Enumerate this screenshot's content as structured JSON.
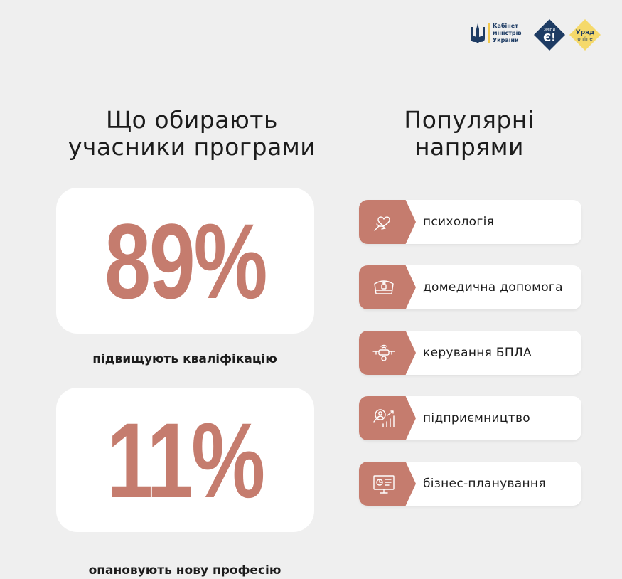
{
  "header": {
    "cabinet_logo_text": "Кабінет\nміністрів\nУкраїни",
    "e_badge_top": "ЗМІНИ",
    "e_badge_letter": "Є!",
    "uryad_title": "Уряд",
    "uryad_sub": "online"
  },
  "left": {
    "title": "Що обирають\nучасники програми",
    "stats": [
      {
        "value": "89%",
        "caption": "підвищують кваліфікацію"
      },
      {
        "value": "11%",
        "caption": "опановують нову професію"
      }
    ]
  },
  "right": {
    "title": "Популярні\nнапрями",
    "items": [
      {
        "icon": "heart-hand-icon",
        "label": "психологія"
      },
      {
        "icon": "nurse-cap-icon",
        "label": "домедична допомога"
      },
      {
        "icon": "drone-icon",
        "label": "керування БПЛА"
      },
      {
        "icon": "business-growth-icon",
        "label": "підприємництво"
      },
      {
        "icon": "presentation-board-icon",
        "label": "бізнес-планування"
      }
    ]
  },
  "colors": {
    "accent": "#c57c6e",
    "background": "#efefef",
    "card": "#ffffff",
    "navy": "#1d3b63",
    "yellow": "#f5d96b"
  }
}
